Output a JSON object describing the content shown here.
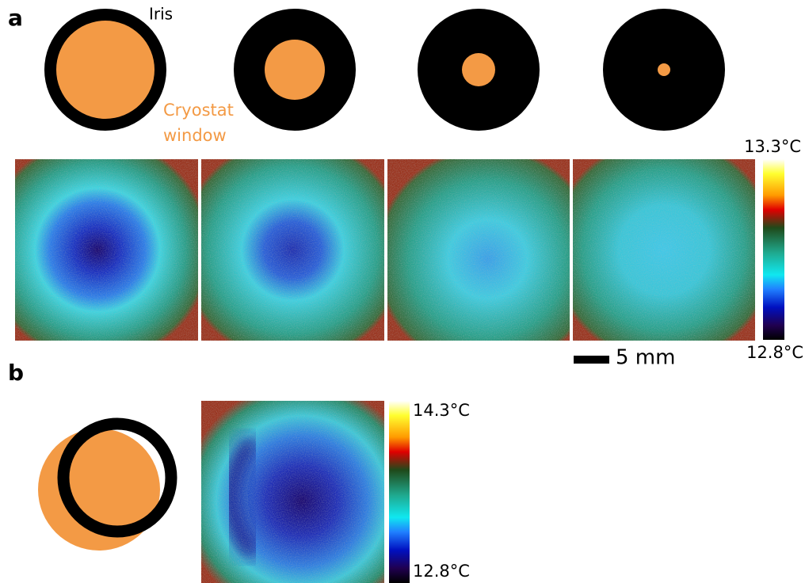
{
  "panel_a": {
    "label": "a",
    "iris_label": "Iris",
    "window_label": [
      "Cryostat",
      "window"
    ],
    "colorbar_max": "13.3°C",
    "colorbar_min": "12.8°C",
    "scale_bar": "5 mm"
  },
  "panel_b": {
    "label": "b",
    "colorbar_max": "14.3°C",
    "colorbar_min": "12.8°C"
  }
}
